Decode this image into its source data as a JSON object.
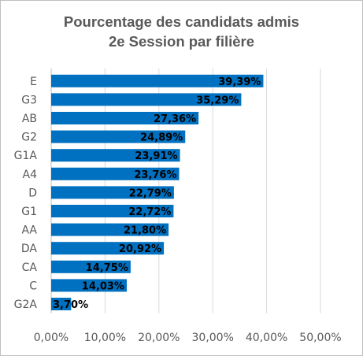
{
  "chart_data": {
    "type": "bar",
    "orientation": "horizontal",
    "title_lines": [
      "Pourcentage des candidats admis",
      "2e Session par filière"
    ],
    "categories": [
      "E",
      "G3",
      "AB",
      "G2",
      "G1A",
      "A4",
      "D",
      "G1",
      "AA",
      "DA",
      "CA",
      "C",
      "G2A"
    ],
    "values": [
      39.39,
      35.29,
      27.36,
      24.89,
      23.91,
      23.76,
      22.79,
      22.72,
      21.8,
      20.92,
      14.75,
      14.03,
      3.7
    ],
    "data_labels": [
      "39,39%",
      "35,29%",
      "27,36%",
      "24,89%",
      "23,91%",
      "23,76%",
      "22,79%",
      "22,72%",
      "21,80%",
      "20,92%",
      "14,75%",
      "14,03%",
      "3,70%"
    ],
    "x_ticks": [
      0,
      10,
      20,
      30,
      40,
      50
    ],
    "x_tick_labels": [
      "0,00%",
      "10,00%",
      "20,00%",
      "30,00%",
      "40,00%",
      "50,00%"
    ],
    "xlim": [
      0,
      50
    ],
    "grid": "vertical",
    "legend": "none",
    "bar_color": "#0070C0",
    "grid_color": "#d9d9d9"
  }
}
